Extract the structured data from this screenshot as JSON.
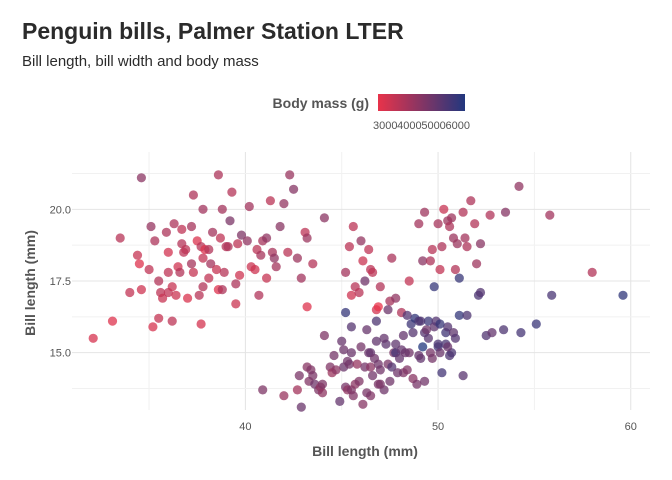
{
  "title": "Penguin bills, Palmer Station LTER",
  "subtitle": "Bill length, bill width and body mass",
  "chart_data": {
    "type": "scatter",
    "xlabel": "Bill length (mm)",
    "ylabel": "Bill length (mm)",
    "xlim": [
      31,
      61
    ],
    "ylim": [
      13.0,
      22.0
    ],
    "x_ticks": [
      40,
      50,
      60
    ],
    "y_ticks": [
      15.0,
      17.5,
      20.0
    ],
    "x_tick_labels": [
      "40",
      "50",
      "60"
    ],
    "y_tick_labels": [
      "15.0",
      "17.5",
      "20.0"
    ],
    "grid": true,
    "color_scale": {
      "title": "Body mass (g)",
      "low_color": "#e8334a",
      "high_color": "#22377e",
      "domain": [
        2700,
        6300
      ],
      "ticks": [
        "3000",
        "4000",
        "5000",
        "6000"
      ],
      "placement": "top"
    },
    "points": [
      [
        32.1,
        15.5,
        3050
      ],
      [
        33.1,
        16.1,
        2900
      ],
      [
        33.5,
        19.0,
        3600
      ],
      [
        34.0,
        17.1,
        3400
      ],
      [
        34.4,
        18.4,
        3325
      ],
      [
        34.5,
        18.1,
        2900
      ],
      [
        34.6,
        21.1,
        4400
      ],
      [
        34.6,
        17.2,
        3200
      ],
      [
        35.0,
        17.9,
        3450
      ],
      [
        35.1,
        19.4,
        4200
      ],
      [
        35.2,
        15.9,
        3050
      ],
      [
        35.3,
        18.9,
        3800
      ],
      [
        35.5,
        16.2,
        3350
      ],
      [
        35.5,
        17.5,
        3700
      ],
      [
        35.6,
        17.1,
        3500
      ],
      [
        35.7,
        16.9,
        3300
      ],
      [
        35.9,
        19.2,
        3800
      ],
      [
        36.0,
        18.5,
        3100
      ],
      [
        36.0,
        17.8,
        3450
      ],
      [
        36.0,
        17.1,
        3450
      ],
      [
        36.2,
        16.1,
        3500
      ],
      [
        36.2,
        17.3,
        3300
      ],
      [
        36.3,
        19.5,
        3800
      ],
      [
        36.4,
        17.0,
        3250
      ],
      [
        36.5,
        18.0,
        3150
      ],
      [
        36.6,
        17.8,
        3700
      ],
      [
        36.7,
        19.3,
        3450
      ],
      [
        36.7,
        18.8,
        3650
      ],
      [
        36.8,
        18.5,
        3500
      ],
      [
        36.9,
        18.6,
        3500
      ],
      [
        37.0,
        16.9,
        3000
      ],
      [
        37.2,
        18.1,
        3900
      ],
      [
        37.2,
        19.4,
        3900
      ],
      [
        37.3,
        20.5,
        3775
      ],
      [
        37.3,
        17.8,
        3350
      ],
      [
        37.5,
        18.9,
        2975
      ],
      [
        37.6,
        17.0,
        3600
      ],
      [
        37.7,
        18.7,
        3600
      ],
      [
        37.7,
        16.0,
        3075
      ],
      [
        37.8,
        18.3,
        3400
      ],
      [
        37.8,
        17.3,
        3700
      ],
      [
        37.8,
        20.0,
        4000
      ],
      [
        37.9,
        18.6,
        2925
      ],
      [
        38.1,
        18.6,
        3700
      ],
      [
        38.1,
        17.6,
        3425
      ],
      [
        38.2,
        18.1,
        3950
      ],
      [
        38.3,
        19.2,
        3950
      ],
      [
        38.5,
        17.9,
        3325
      ],
      [
        38.6,
        21.2,
        3800
      ],
      [
        38.6,
        17.2,
        2900
      ],
      [
        38.7,
        19.0,
        3450
      ],
      [
        38.8,
        17.2,
        3800
      ],
      [
        38.8,
        20.0,
        3950
      ],
      [
        38.9,
        17.8,
        3625
      ],
      [
        39.0,
        18.7,
        3650
      ],
      [
        39.1,
        18.7,
        3750
      ],
      [
        39.2,
        19.6,
        4675
      ],
      [
        39.3,
        20.6,
        3650
      ],
      [
        39.5,
        16.7,
        3250
      ],
      [
        39.5,
        17.4,
        3800
      ],
      [
        39.6,
        18.8,
        3500
      ],
      [
        39.7,
        17.7,
        3200
      ],
      [
        39.8,
        19.1,
        4650
      ],
      [
        40.1,
        18.9,
        4300
      ],
      [
        40.2,
        20.1,
        3975
      ],
      [
        40.3,
        18.0,
        3250
      ],
      [
        40.5,
        17.9,
        3200
      ],
      [
        40.6,
        18.6,
        3550
      ],
      [
        40.7,
        17.0,
        3725
      ],
      [
        40.8,
        18.4,
        3900
      ],
      [
        40.9,
        18.9,
        3900
      ],
      [
        41.1,
        17.6,
        3325
      ],
      [
        41.1,
        19.0,
        4300
      ],
      [
        41.3,
        20.3,
        3550
      ],
      [
        41.4,
        18.5,
        3875
      ],
      [
        41.5,
        18.3,
        4300
      ],
      [
        41.6,
        18.0,
        3950
      ],
      [
        41.8,
        19.4,
        4450
      ],
      [
        42.0,
        20.2,
        4250
      ],
      [
        42.2,
        18.5,
        3550
      ],
      [
        42.3,
        21.2,
        4150
      ],
      [
        42.5,
        20.7,
        4500
      ],
      [
        42.7,
        18.3,
        4075
      ],
      [
        42.9,
        17.6,
        4000
      ],
      [
        43.1,
        19.2,
        3500
      ],
      [
        43.2,
        19.0,
        4100
      ],
      [
        43.2,
        16.6,
        2900
      ],
      [
        43.5,
        18.1,
        3650
      ],
      [
        44.1,
        19.7,
        4400
      ],
      [
        45.2,
        17.8,
        3950
      ],
      [
        45.4,
        18.7,
        3525
      ],
      [
        45.5,
        17.0,
        3200
      ],
      [
        45.6,
        19.4,
        3525
      ],
      [
        45.7,
        17.3,
        3600
      ],
      [
        45.9,
        17.1,
        3575
      ],
      [
        46.0,
        18.9,
        4250
      ],
      [
        46.1,
        18.2,
        3250
      ],
      [
        46.4,
        18.6,
        3450
      ],
      [
        46.5,
        17.9,
        3500
      ],
      [
        46.6,
        17.8,
        3500
      ],
      [
        46.8,
        16.5,
        3100
      ],
      [
        46.9,
        16.6,
        2700
      ],
      [
        47.0,
        17.3,
        3700
      ],
      [
        47.5,
        16.8,
        3900
      ],
      [
        47.6,
        18.3,
        3850
      ],
      [
        48.1,
        16.4,
        3725
      ],
      [
        48.5,
        17.5,
        3400
      ],
      [
        49.0,
        19.5,
        3950
      ],
      [
        49.2,
        18.2,
        4400
      ],
      [
        49.3,
        19.9,
        4050
      ],
      [
        49.6,
        18.2,
        3775
      ],
      [
        49.7,
        18.6,
        3600
      ],
      [
        50.0,
        19.5,
        3900
      ],
      [
        50.1,
        17.9,
        3400
      ],
      [
        50.2,
        18.7,
        3775
      ],
      [
        50.3,
        20.0,
        3300
      ],
      [
        50.5,
        19.6,
        4050
      ],
      [
        50.6,
        19.4,
        3800
      ],
      [
        50.7,
        19.7,
        4050
      ],
      [
        50.8,
        19.0,
        4100
      ],
      [
        50.9,
        17.9,
        3675
      ],
      [
        51.0,
        18.8,
        4100
      ],
      [
        51.3,
        19.9,
        3700
      ],
      [
        51.4,
        19.0,
        3950
      ],
      [
        51.5,
        18.7,
        3750
      ],
      [
        51.7,
        20.3,
        3775
      ],
      [
        51.9,
        19.5,
        3675
      ],
      [
        52.0,
        18.1,
        4050
      ],
      [
        52.2,
        18.8,
        4450
      ],
      [
        52.7,
        19.8,
        3725
      ],
      [
        53.5,
        19.9,
        4500
      ],
      [
        54.2,
        20.8,
        4300
      ],
      [
        55.8,
        19.8,
        4000
      ],
      [
        58.0,
        17.8,
        3700
      ],
      [
        40.9,
        13.7,
        4650
      ],
      [
        42.0,
        13.5,
        4150
      ],
      [
        42.7,
        13.7,
        3950
      ],
      [
        42.8,
        14.2,
        4700
      ],
      [
        42.9,
        13.1,
        5000
      ],
      [
        43.2,
        14.5,
        4450
      ],
      [
        43.3,
        14.0,
        4575
      ],
      [
        43.4,
        14.4,
        4600
      ],
      [
        43.5,
        14.2,
        4700
      ],
      [
        43.6,
        13.9,
        4900
      ],
      [
        43.8,
        13.7,
        4625
      ],
      [
        44.0,
        13.6,
        4350
      ],
      [
        44.4,
        14.5,
        4600
      ],
      [
        44.5,
        14.3,
        4100
      ],
      [
        44.9,
        13.3,
        5100
      ],
      [
        45.0,
        15.4,
        5050
      ],
      [
        45.1,
        14.5,
        5000
      ],
      [
        45.2,
        13.8,
        4750
      ],
      [
        45.3,
        13.7,
        4300
      ],
      [
        45.4,
        14.6,
        4800
      ],
      [
        45.5,
        13.7,
        4650
      ],
      [
        45.5,
        15.0,
        5000
      ],
      [
        45.7,
        13.9,
        4400
      ],
      [
        45.8,
        14.6,
        4200
      ],
      [
        46.1,
        13.2,
        4500
      ],
      [
        46.2,
        14.5,
        4800
      ],
      [
        46.3,
        15.8,
        5050
      ],
      [
        46.4,
        15.0,
        4975
      ],
      [
        46.5,
        13.5,
        4550
      ],
      [
        46.5,
        14.5,
        4400
      ],
      [
        46.6,
        14.2,
        4850
      ],
      [
        46.8,
        15.4,
        5150
      ],
      [
        46.9,
        14.6,
        4875
      ],
      [
        47.2,
        13.7,
        4925
      ],
      [
        47.3,
        15.3,
        5250
      ],
      [
        47.4,
        14.6,
        4725
      ],
      [
        47.5,
        14.0,
        4875
      ],
      [
        47.6,
        14.5,
        5400
      ],
      [
        47.7,
        15.0,
        4725
      ],
      [
        47.8,
        15.0,
        5650
      ],
      [
        48.1,
        15.1,
        5100
      ],
      [
        48.2,
        14.3,
        4600
      ],
      [
        48.4,
        14.4,
        4600
      ],
      [
        48.5,
        15.0,
        4850
      ],
      [
        48.6,
        16.0,
        5800
      ],
      [
        48.7,
        14.1,
        4450
      ],
      [
        48.8,
        16.2,
        6000
      ],
      [
        49.0,
        16.1,
        5550
      ],
      [
        49.1,
        14.8,
        5150
      ],
      [
        49.2,
        15.2,
        6300
      ],
      [
        49.3,
        15.7,
        5350
      ],
      [
        49.4,
        15.8,
        4925
      ],
      [
        49.5,
        16.1,
        5850
      ],
      [
        49.6,
        15.0,
        4750
      ],
      [
        49.8,
        15.9,
        5200
      ],
      [
        49.9,
        16.1,
        5400
      ],
      [
        50.0,
        15.2,
        5700
      ],
      [
        50.1,
        15.0,
        5000
      ],
      [
        50.2,
        14.3,
        5700
      ],
      [
        50.4,
        15.7,
        5750
      ],
      [
        50.5,
        15.9,
        5400
      ],
      [
        50.7,
        15.0,
        5550
      ],
      [
        50.8,
        15.7,
        5200
      ],
      [
        51.1,
        16.3,
        6000
      ],
      [
        51.3,
        14.2,
        5300
      ],
      [
        51.5,
        16.3,
        5500
      ],
      [
        52.1,
        17.0,
        5550
      ],
      [
        52.2,
        17.1,
        5400
      ],
      [
        52.5,
        15.6,
        5450
      ],
      [
        53.4,
        15.8,
        5500
      ],
      [
        54.3,
        15.7,
        5650
      ],
      [
        55.1,
        16.0,
        5850
      ],
      [
        55.9,
        17.0,
        5600
      ],
      [
        59.6,
        17.0,
        6050
      ],
      [
        45.2,
        16.4,
        5950
      ],
      [
        45.5,
        15.9,
        5350
      ],
      [
        46.2,
        17.5,
        4875
      ],
      [
        46.8,
        16.1,
        5500
      ],
      [
        47.4,
        16.5,
        4950
      ],
      [
        47.8,
        16.9,
        4300
      ],
      [
        48.2,
        15.6,
        5100
      ],
      [
        48.7,
        15.7,
        5350
      ],
      [
        49.1,
        16.1,
        5500
      ],
      [
        49.5,
        15.5,
        5300
      ],
      [
        50.0,
        15.3,
        5550
      ],
      [
        50.1,
        16.0,
        5900
      ],
      [
        50.4,
        15.3,
        5550
      ],
      [
        50.9,
        15.5,
        5400
      ],
      [
        51.1,
        17.6,
        5900
      ],
      [
        44.1,
        15.6,
        4650
      ],
      [
        45.1,
        15.1,
        4950
      ],
      [
        46.0,
        15.2,
        4800
      ],
      [
        46.5,
        15.0,
        5100
      ],
      [
        47.2,
        15.5,
        5100
      ],
      [
        48.4,
        16.3,
        5400
      ],
      [
        49.8,
        17.3,
        5950
      ],
      [
        50.5,
        15.2,
        5000
      ],
      [
        52.8,
        15.7,
        5100
      ],
      [
        47.0,
        14.4,
        4850
      ],
      [
        48.0,
        14.8,
        5100
      ],
      [
        49.7,
        14.8,
        4800
      ],
      [
        50.6,
        14.9,
        5500
      ],
      [
        43.9,
        13.8,
        4300
      ],
      [
        44.7,
        14.4,
        4400
      ],
      [
        45.9,
        14.0,
        4600
      ],
      [
        46.9,
        13.9,
        4700
      ],
      [
        47.9,
        14.3,
        4900
      ],
      [
        48.9,
        13.9,
        4750
      ],
      [
        49.3,
        14.0,
        4850
      ],
      [
        44.0,
        13.9,
        4650
      ],
      [
        45.6,
        13.5,
        4600
      ],
      [
        46.3,
        13.6,
        4700
      ],
      [
        47.0,
        13.9,
        4700
      ],
      [
        48.3,
        15.0,
        5000
      ],
      [
        49.0,
        14.9,
        5050
      ],
      [
        44.6,
        14.9,
        4800
      ],
      [
        45.3,
        14.7,
        4850
      ],
      [
        46.7,
        14.8,
        4900
      ],
      [
        47.8,
        15.3,
        5200
      ]
    ]
  }
}
